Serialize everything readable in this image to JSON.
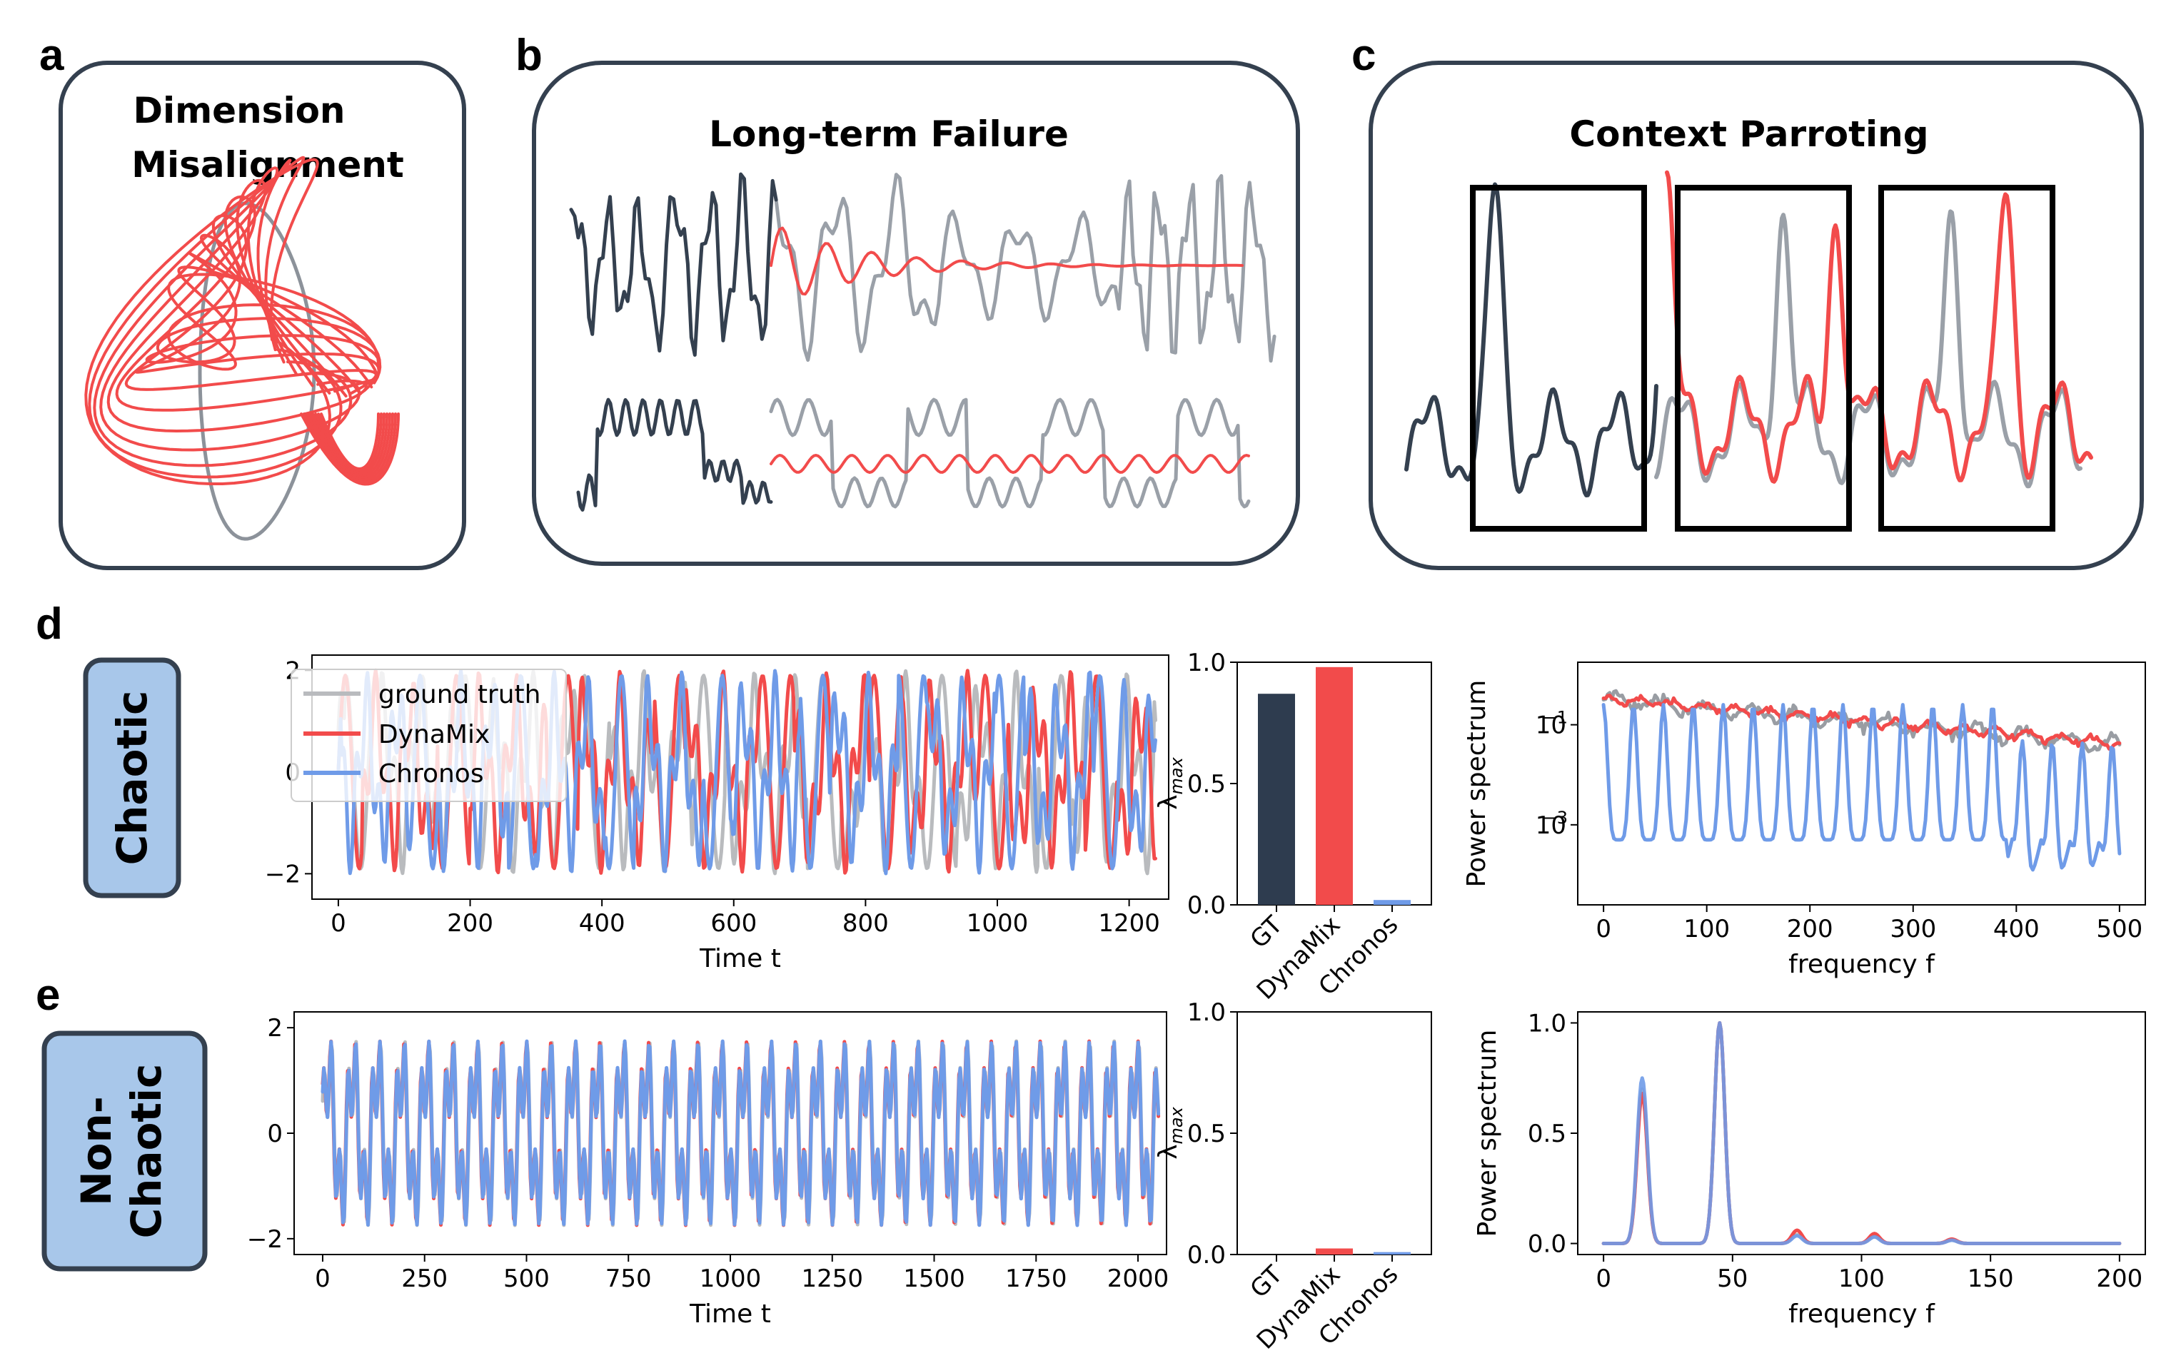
{
  "panel_labels": {
    "a": "a",
    "b": "b",
    "c": "c",
    "d": "d",
    "e": "e"
  },
  "top_panels": {
    "a": {
      "title_line1": "Dimension",
      "title_line2": "Misalignment"
    },
    "b": {
      "title": "Long-term Failure"
    },
    "c": {
      "title": "Context Parroting"
    }
  },
  "side_labels": {
    "d": "Chaotic",
    "e_line1": "Non-",
    "e_line2": "Chaotic"
  },
  "colors": {
    "ground_truth": "#b9bbbe",
    "dynamix": "#f24b4b",
    "chronos": "#6f9be8",
    "dark": "#34404f",
    "gt_bar": "#2e3c4f",
    "box_fill": "#a8c7ea",
    "box_edge": "#34404f"
  },
  "legend": [
    "ground truth",
    "DynaMix",
    "Chronos"
  ],
  "chart_data": [
    {
      "id": "d_timeseries",
      "type": "line",
      "xlabel": "Time t",
      "ylabel": "",
      "xlim": [
        -40,
        1260
      ],
      "ylim": [
        -2.5,
        2.3
      ],
      "xticks": [
        "0",
        "200",
        "400",
        "600",
        "800",
        "1000",
        "1200"
      ],
      "yticks": [
        "−2",
        "0",
        "2"
      ],
      "series": [
        {
          "name": "ground truth"
        },
        {
          "name": "DynaMix"
        },
        {
          "name": "Chronos"
        }
      ]
    },
    {
      "id": "d_lyapunov",
      "type": "bar",
      "categories": [
        "GT",
        "DynaMix",
        "Chronos"
      ],
      "values": [
        0.87,
        0.98,
        0.02
      ],
      "ylabel": "λmax",
      "ylim": [
        0,
        1.0
      ],
      "yticks": [
        "0.0",
        "0.5",
        "1.0"
      ]
    },
    {
      "id": "d_spectrum",
      "type": "line",
      "xlabel": "frequency f",
      "ylabel": "Power spectrum",
      "xlim": [
        -25,
        525
      ],
      "yscale": "log",
      "ylim_log10": [
        -4.6,
        0.25
      ],
      "xticks": [
        "0",
        "100",
        "200",
        "300",
        "400",
        "500"
      ],
      "yticks": [
        "10−1",
        "10−3"
      ],
      "series": [
        {
          "name": "ground truth"
        },
        {
          "name": "DynaMix"
        },
        {
          "name": "Chronos"
        }
      ]
    },
    {
      "id": "e_timeseries",
      "type": "line",
      "xlabel": "Time t",
      "ylabel": "",
      "xlim": [
        -70,
        2070
      ],
      "ylim": [
        -2.3,
        2.3
      ],
      "xticks": [
        "0",
        "250",
        "500",
        "750",
        "1000",
        "1250",
        "1500",
        "1750",
        "2000"
      ],
      "yticks": [
        "−2",
        "0",
        "2"
      ],
      "series": [
        {
          "name": "ground truth"
        },
        {
          "name": "DynaMix"
        },
        {
          "name": "Chronos"
        }
      ]
    },
    {
      "id": "e_lyapunov",
      "type": "bar",
      "categories": [
        "GT",
        "DynaMix",
        "Chronos"
      ],
      "values": [
        0.0,
        0.025,
        0.01
      ],
      "ylabel": "λmax",
      "ylim": [
        0,
        1.0
      ],
      "yticks": [
        "0.0",
        "0.5",
        "1.0"
      ]
    },
    {
      "id": "e_spectrum",
      "type": "line",
      "xlabel": "frequency f",
      "ylabel": "Power spectrum",
      "xlim": [
        -10,
        210
      ],
      "ylim": [
        -0.05,
        1.05
      ],
      "xticks": [
        "0",
        "50",
        "100",
        "150",
        "200"
      ],
      "yticks": [
        "0.0",
        "0.5",
        "1.0"
      ],
      "peaks": [
        {
          "f": 15,
          "gt": 0.7,
          "dynamix": 0.68,
          "chronos": 0.75
        },
        {
          "f": 45,
          "gt": 1.0,
          "dynamix": 1.0,
          "chronos": 1.0
        },
        {
          "f": 75,
          "gt": 0.04,
          "dynamix": 0.06,
          "chronos": 0.035
        },
        {
          "f": 105,
          "gt": 0.03,
          "dynamix": 0.045,
          "chronos": 0.03
        },
        {
          "f": 135,
          "gt": 0.015,
          "dynamix": 0.02,
          "chronos": 0.015
        }
      ],
      "series": [
        {
          "name": "ground truth"
        },
        {
          "name": "DynaMix"
        },
        {
          "name": "Chronos"
        }
      ]
    }
  ]
}
